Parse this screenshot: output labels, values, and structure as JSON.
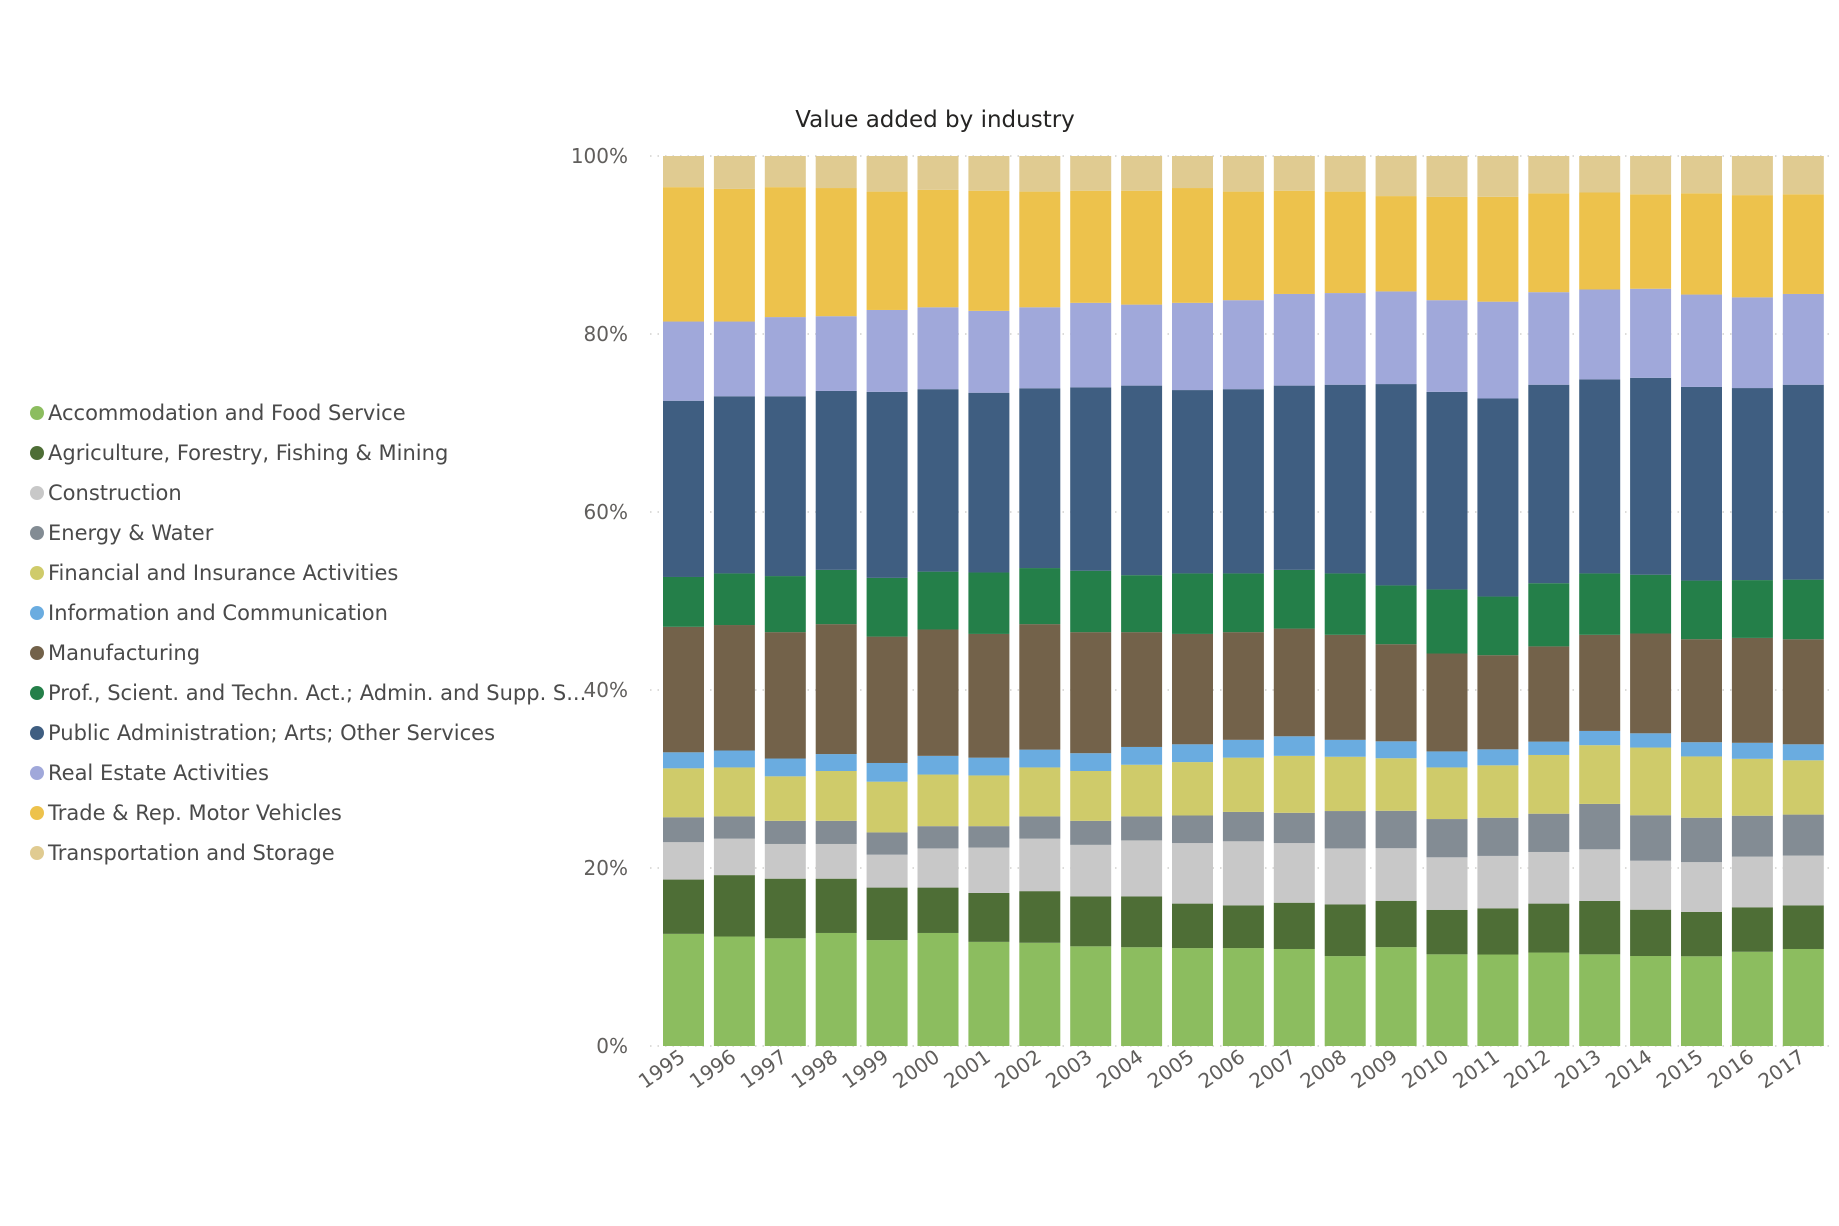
{
  "chart_data": {
    "type": "bar",
    "stacked": "percent",
    "title": "Value added by industry",
    "xlabel": "",
    "ylabel": "",
    "ylim": [
      0,
      100
    ],
    "y_ticks": [
      "0%",
      "20%",
      "40%",
      "60%",
      "80%",
      "100%"
    ],
    "grid": "dotted horizontal",
    "legend_position": "left",
    "categories": [
      "1995",
      "1996",
      "1997",
      "1998",
      "1999",
      "2000",
      "2001",
      "2002",
      "2003",
      "2004",
      "2005",
      "2006",
      "2007",
      "2008",
      "2009",
      "2010",
      "2011",
      "2012",
      "2013",
      "2014",
      "2015",
      "2016",
      "2017"
    ],
    "series": [
      {
        "name": "Accommodation and Food Service",
        "color": "#8cbd5f",
        "values": [
          12.6,
          12.3,
          12.1,
          12.7,
          11.9,
          12.7,
          11.7,
          11.6,
          11.2,
          11.1,
          11.0,
          11.0,
          10.9,
          10.1,
          11.1,
          10.3,
          10.3,
          10.5,
          10.3,
          10.1,
          10.1,
          10.6,
          10.9
        ]
      },
      {
        "name": "Agriculture, Forestry, Fishing & Mining",
        "color": "#4e6e36",
        "values": [
          6.1,
          6.9,
          6.7,
          6.1,
          5.9,
          5.1,
          5.5,
          5.8,
          5.6,
          5.7,
          5.0,
          4.8,
          5.2,
          5.8,
          5.2,
          5.0,
          5.2,
          5.5,
          6.0,
          5.2,
          5.0,
          5.0,
          4.9
        ]
      },
      {
        "name": "Construction",
        "color": "#c8c8c8",
        "values": [
          4.2,
          4.1,
          3.9,
          3.9,
          3.7,
          4.4,
          5.1,
          5.9,
          5.8,
          6.3,
          6.8,
          7.2,
          6.7,
          6.3,
          5.9,
          5.9,
          5.9,
          5.8,
          5.8,
          5.5,
          5.6,
          5.7,
          5.6
        ]
      },
      {
        "name": "Energy & Water",
        "color": "#838c94",
        "values": [
          2.8,
          2.5,
          2.6,
          2.6,
          2.5,
          2.5,
          2.4,
          2.5,
          2.7,
          2.7,
          3.1,
          3.3,
          3.4,
          4.2,
          4.2,
          4.3,
          4.3,
          4.3,
          5.1,
          5.1,
          5.0,
          4.6,
          4.6
        ]
      },
      {
        "name": "Financial and Insurance Activities",
        "color": "#cfcb6a",
        "values": [
          5.5,
          5.5,
          5.0,
          5.6,
          5.7,
          5.8,
          5.7,
          5.5,
          5.6,
          5.8,
          6.0,
          6.1,
          6.4,
          6.1,
          5.9,
          5.8,
          5.9,
          6.6,
          6.6,
          7.6,
          6.9,
          6.4,
          6.1
        ]
      },
      {
        "name": "Information and Communication",
        "color": "#6aace0",
        "values": [
          1.8,
          1.9,
          2.0,
          1.9,
          2.1,
          2.1,
          2.0,
          2.0,
          2.0,
          2.0,
          2.0,
          2.0,
          2.2,
          1.9,
          1.9,
          1.8,
          1.8,
          1.5,
          1.6,
          1.6,
          1.6,
          1.8,
          1.8
        ]
      },
      {
        "name": "Manufacturing",
        "color": "#73624a",
        "values": [
          14.1,
          14.1,
          14.2,
          14.6,
          14.2,
          14.2,
          13.9,
          14.1,
          13.6,
          12.9,
          12.4,
          12.1,
          12.1,
          11.8,
          10.9,
          11.0,
          10.6,
          10.7,
          10.8,
          11.2,
          11.6,
          11.8,
          11.8
        ]
      },
      {
        "name": "Prof., Scient. and Techn. Act.; Admin. and Supp. S...",
        "color": "#247f49",
        "values": [
          5.6,
          5.8,
          6.3,
          6.1,
          6.6,
          6.5,
          6.9,
          6.3,
          6.9,
          6.4,
          6.8,
          6.6,
          6.6,
          6.9,
          6.6,
          7.2,
          6.6,
          7.1,
          6.9,
          6.6,
          6.6,
          6.5,
          6.7
        ]
      },
      {
        "name": "Public Administration; Arts; Other Services",
        "color": "#3f5e81",
        "values": [
          19.8,
          19.9,
          20.2,
          20.1,
          20.9,
          20.5,
          20.2,
          20.2,
          20.6,
          21.3,
          20.6,
          20.7,
          20.7,
          21.2,
          22.6,
          22.2,
          22.3,
          22.3,
          21.8,
          22.1,
          21.8,
          21.6,
          21.9
        ]
      },
      {
        "name": "Real Estate Activities",
        "color": "#a0a8da",
        "values": [
          8.9,
          8.4,
          8.9,
          8.4,
          9.2,
          9.2,
          9.2,
          9.1,
          9.5,
          9.1,
          9.8,
          10.0,
          10.3,
          10.3,
          10.4,
          10.3,
          10.9,
          10.4,
          10.1,
          10.0,
          10.4,
          10.2,
          10.2
        ]
      },
      {
        "name": "Trade & Rep. Motor Vehicles",
        "color": "#edc24c",
        "values": [
          15.1,
          14.9,
          14.6,
          14.4,
          13.3,
          13.2,
          13.5,
          13.0,
          12.6,
          12.8,
          12.9,
          12.2,
          11.6,
          11.4,
          10.7,
          11.6,
          11.8,
          11.1,
          10.9,
          10.6,
          11.4,
          11.5,
          11.2
        ]
      },
      {
        "name": "Transportation and Storage",
        "color": "#e0cb91",
        "values": [
          3.5,
          3.7,
          3.5,
          3.6,
          4.0,
          3.8,
          3.9,
          4.0,
          3.9,
          3.9,
          3.6,
          4.0,
          3.9,
          4.0,
          4.5,
          4.6,
          4.6,
          4.2,
          4.1,
          4.3,
          4.2,
          4.4,
          4.3
        ]
      }
    ]
  }
}
